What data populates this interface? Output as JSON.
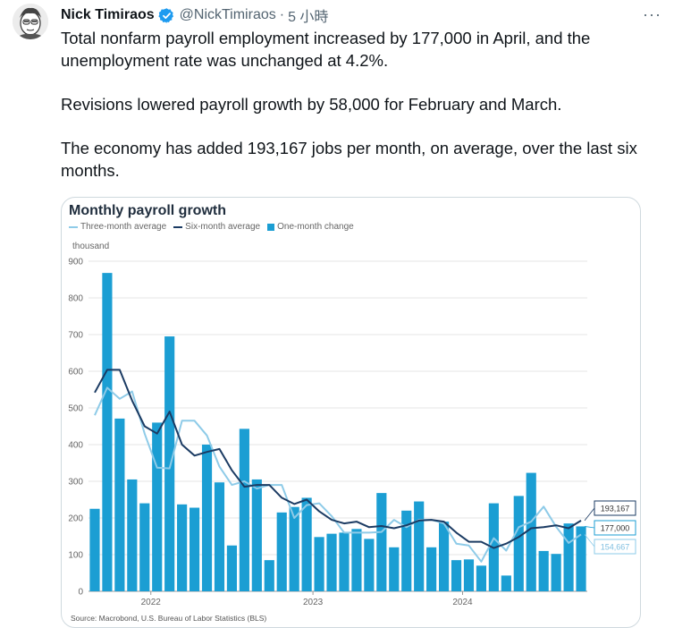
{
  "tweet": {
    "author_name": "Nick Timiraos",
    "handle": "@NickTimiraos",
    "separator": "·",
    "time": "5 小時",
    "more_icon": "more-icon",
    "paragraphs": [
      "Total nonfarm payroll employment increased by 177,000 in April, and the unemployment rate was unchanged at 4.2%.",
      "Revisions lowered payroll growth by 58,000 for February and March.",
      "The economy has added 193,167 jobs per month, on average, over the last six months."
    ]
  },
  "colors": {
    "bar": "#1b9ed3",
    "three_month": "#8ecbe8",
    "six_month": "#1b3b63",
    "grid": "#e4e4e4",
    "verified": "#1d9bf0"
  },
  "chart_data": {
    "type": "bar",
    "title": "Monthly payroll growth",
    "ylabel": "thousand",
    "ylim": [
      0,
      900
    ],
    "yticks": [
      0,
      100,
      200,
      300,
      400,
      500,
      600,
      700,
      800,
      900
    ],
    "xtick_labels": [
      "2022",
      "2023",
      "2024"
    ],
    "source": "Source: Macrobond, U.S. Bureau of Labor Statistics (BLS)",
    "legend": [
      "Three-month average",
      "Six-month average",
      "One-month change"
    ],
    "series": [
      {
        "name": "One-month change",
        "type": "bar",
        "values": [
          225,
          868,
          471,
          305,
          240,
          460,
          695,
          237,
          228,
          400,
          297,
          125,
          443,
          305,
          85,
          215,
          230,
          255,
          148,
          157,
          160,
          170,
          143,
          268,
          120,
          220,
          245,
          120,
          190,
          85,
          87,
          70,
          240,
          43,
          260,
          323,
          110,
          102,
          185,
          177
        ]
      },
      {
        "name": "Three-month average",
        "type": "line",
        "values": [
          480,
          555,
          525,
          545,
          430,
          337,
          335,
          465,
          465,
          425,
          340,
          290,
          300,
          280,
          290,
          290,
          200,
          235,
          240,
          205,
          160,
          160,
          160,
          162,
          195,
          175,
          195,
          195,
          185,
          130,
          125,
          81,
          145,
          111,
          175,
          190,
          231,
          176,
          132,
          155
        ]
      },
      {
        "name": "Six-month average",
        "type": "line",
        "values": [
          542,
          604,
          604,
          520,
          450,
          430,
          490,
          400,
          370,
          380,
          388,
          330,
          285,
          290,
          290,
          255,
          238,
          250,
          218,
          195,
          185,
          190,
          175,
          178,
          172,
          180,
          193,
          195,
          190,
          160,
          135,
          135,
          118,
          130,
          148,
          172,
          175,
          180,
          172,
          193
        ]
      }
    ],
    "end_labels": [
      "193,167",
      "177,000",
      "154,667"
    ]
  }
}
